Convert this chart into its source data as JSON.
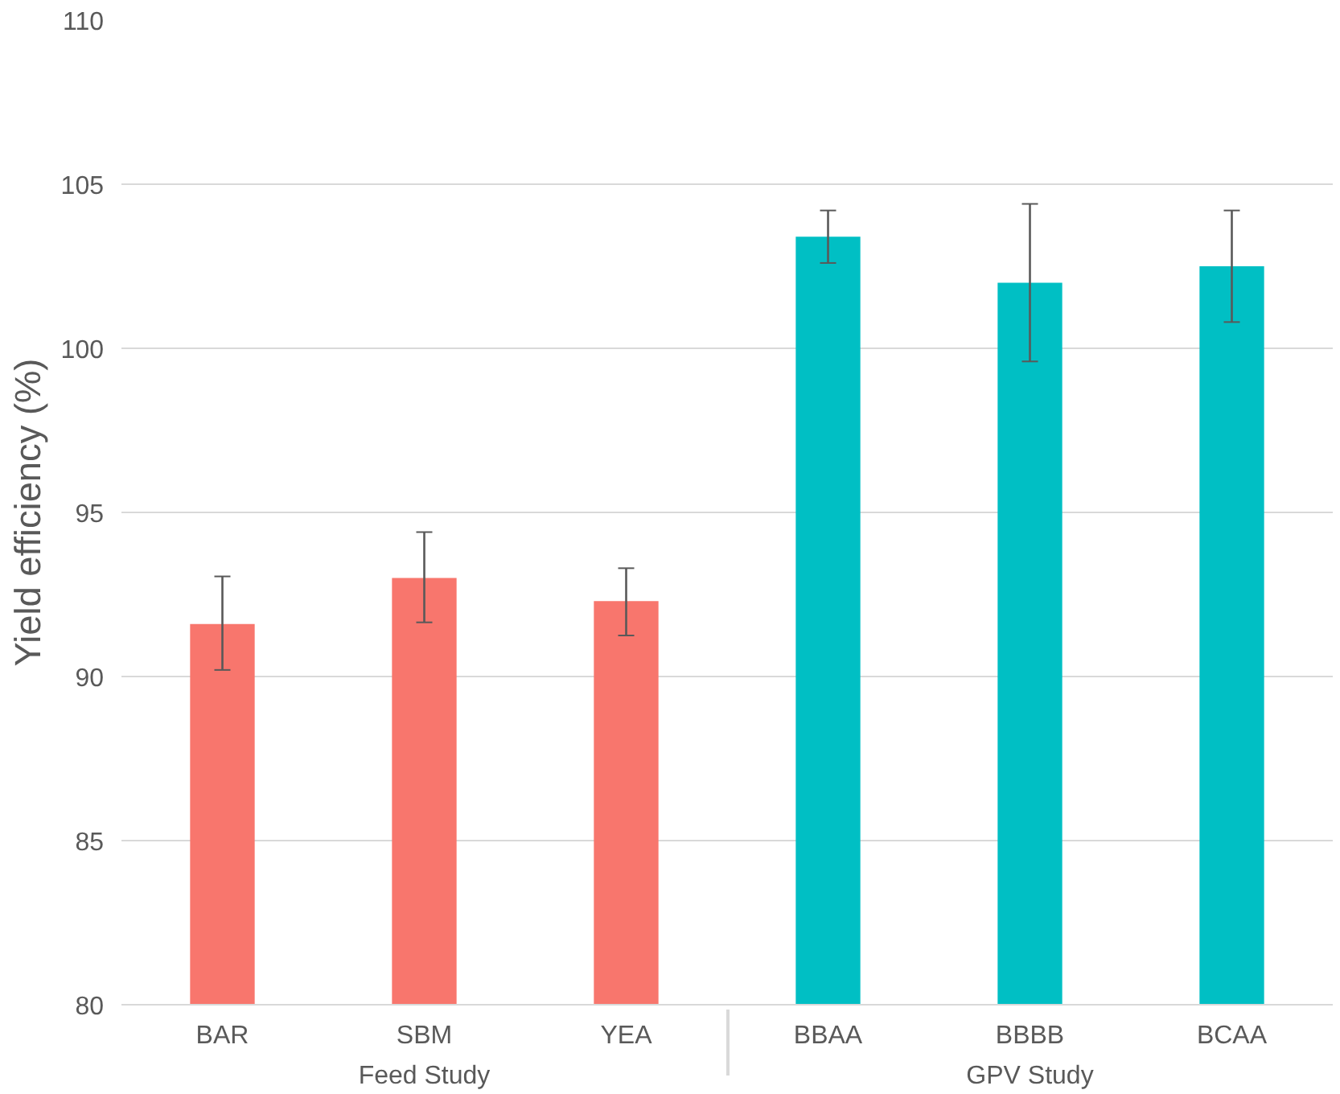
{
  "chart_data": {
    "type": "bar",
    "ylabel": "Yield efficiency (%)",
    "categories": [
      "BAR",
      "SBM",
      "YEA",
      "BBAA",
      "BBBB",
      "BCAA"
    ],
    "series": [
      {
        "name": "Feed Study",
        "color": "#f8766d",
        "values": [
          91.6,
          93.0,
          92.3,
          null,
          null,
          null
        ],
        "errors": [
          [
            90.2,
            93.05
          ],
          [
            91.65,
            94.4
          ],
          [
            91.25,
            93.3
          ],
          null,
          null,
          null
        ]
      },
      {
        "name": "GPV Study",
        "color": "#00bfc4",
        "values": [
          null,
          null,
          null,
          103.4,
          102.0,
          102.5
        ],
        "errors": [
          null,
          null,
          null,
          [
            102.6,
            104.2
          ],
          [
            99.6,
            104.4
          ],
          [
            100.8,
            104.2
          ]
        ]
      }
    ],
    "ylim": [
      80,
      110
    ],
    "yticks": [
      80,
      85,
      90,
      95,
      100,
      105,
      110
    ],
    "grid": "y"
  }
}
